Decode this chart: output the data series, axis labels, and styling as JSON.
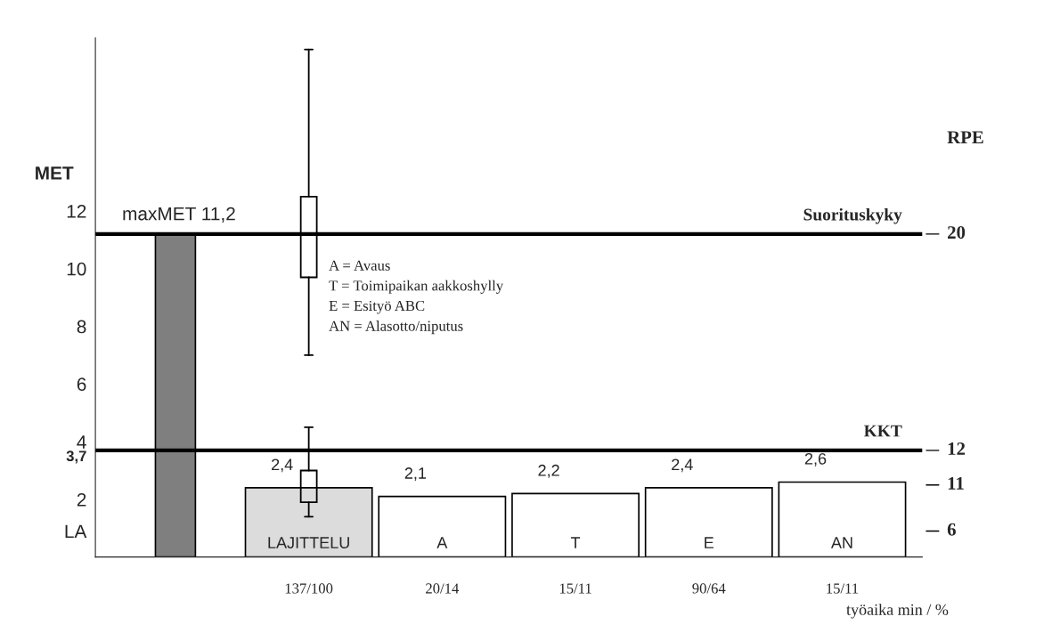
{
  "chart_data": {
    "type": "bar",
    "ylabel": "MET",
    "xlabel": "työaika min / %",
    "categories": [
      null,
      "LAJITTELU",
      "A",
      "T",
      "E",
      "AN"
    ],
    "series": [
      {
        "colors": [
          "#7f7f7f",
          "#dcdcdc",
          "#ffffff",
          "#ffffff",
          "#ffffff",
          "#ffffff"
        ],
        "values": [
          11.2,
          2.4,
          2.1,
          2.2,
          2.4,
          2.6
        ],
        "value_labels": [
          null,
          "2,4",
          "2,1",
          "2,2",
          "2,4",
          "2,6"
        ]
      },
      {
        "type": "box",
        "color": "#000000",
        "boxes": [
          null,
          {
            "low": 7.0,
            "q1": 9.7,
            "median": null,
            "q3": 12.5,
            "high": 17.6
          },
          null,
          null,
          null,
          null
        ]
      },
      {
        "type": "box",
        "color": "#000000",
        "boxes": [
          null,
          {
            "low": 1.4,
            "q1": 1.9,
            "median": null,
            "q3": 3.0,
            "high": 4.5
          },
          null,
          null,
          null,
          null
        ]
      }
    ],
    "ylim": [
      0,
      18
    ],
    "yticks": [
      {
        "value": 0.9,
        "label": "LA"
      },
      2,
      {
        "value": 3.7,
        "label": "3,7"
      },
      4,
      6,
      8,
      10,
      12
    ],
    "ref_lines": [
      {
        "axis": "y",
        "value": 11.2,
        "label": "Suorituskyky",
        "color": "#000000"
      },
      {
        "axis": "y",
        "value": 3.7,
        "label": "KKT",
        "color": "#000000"
      }
    ],
    "annotations": [
      {
        "text": "maxMET 11,2",
        "y": 11.2
      },
      "A = Avaus",
      "T = Toimipaikan aakkoshylly",
      "E = Esityö ABC",
      "AN = Alasotto/niputus",
      "137/100",
      "20/14",
      "15/11",
      "90/64",
      "15/11",
      "RPE",
      "20",
      "12",
      "11",
      "6"
    ],
    "grid": false,
    "legend": false
  }
}
